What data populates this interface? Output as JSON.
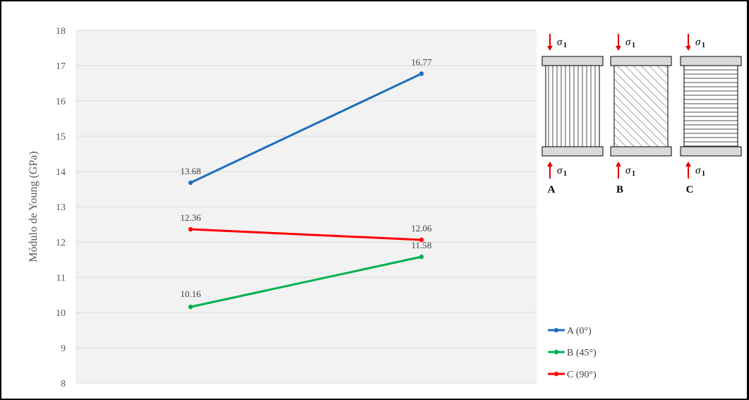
{
  "chart_data": {
    "type": "line",
    "ylabel": "Módulo de Young (GPa)",
    "ylim": [
      8,
      18
    ],
    "yticks": [
      "8",
      "9",
      "10",
      "11",
      "12",
      "13",
      "14",
      "15",
      "16",
      "17",
      "18"
    ],
    "x": [
      1,
      2
    ],
    "grid": true,
    "legend_position": "bottom-right",
    "series": [
      {
        "name": "A (0°)",
        "values": [
          13.68,
          16.77
        ],
        "labels": [
          "13.68",
          "16.77"
        ],
        "color": "#1f6fbf"
      },
      {
        "name": "B (45°)",
        "values": [
          10.16,
          11.58
        ],
        "labels": [
          "10.16",
          "11.58"
        ],
        "color": "#00b050"
      },
      {
        "name": "C (90°)",
        "values": [
          12.36,
          12.06
        ],
        "labels": [
          "12.36",
          "12.06"
        ],
        "color": "#ff0000"
      }
    ]
  },
  "specimen_diagram": {
    "stress_symbol": "σ",
    "stress_subscript": "1",
    "specimens": [
      {
        "label": "A",
        "hatch": "vertical"
      },
      {
        "label": "B",
        "hatch": "diagonal"
      },
      {
        "label": "C",
        "hatch": "horizontal"
      }
    ],
    "arrow_color": "#e00000"
  }
}
